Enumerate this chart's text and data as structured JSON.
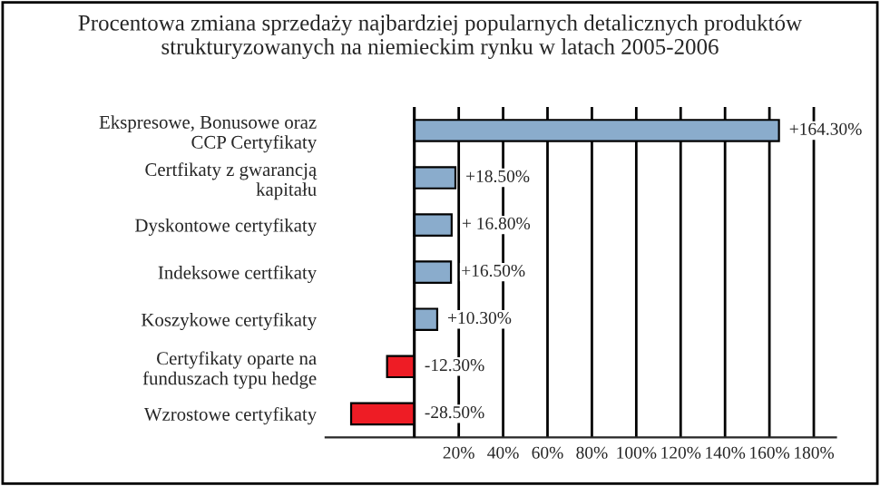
{
  "chart_data": {
    "type": "bar",
    "orientation": "horizontal",
    "title": "Procentowa zmiana sprzedaży najbardziej popularnych detalicznych produktów strukturyzowanych na niemieckim rynku w latach 2005-2006",
    "categories": [
      "Ekspresowe, Bonusowe oraz CCP Certyfikaty",
      "Certfikaty z gwarancją kapitału",
      "Dyskontowe certyfikaty",
      "Indeksowe certfikaty",
      "Koszykowe certyfikaty",
      "Certyfikaty oparte na funduszach typu hedge",
      "Wzrostowe certyfikaty"
    ],
    "values": [
      164.3,
      18.5,
      16.8,
      16.5,
      10.3,
      -12.3,
      -28.5
    ],
    "colors": [
      "#8aaccc",
      "#8aaccc",
      "#8aaccc",
      "#8aaccc",
      "#8aaccc",
      "#ee1c25",
      "#ee1c25"
    ],
    "value_labels": [
      "+164.30%",
      "+18.50%",
      "+ 16.80%",
      "+16.50%",
      "+10.30%",
      "-12.30%",
      "-28.50%"
    ],
    "xlim": [
      -40,
      190
    ],
    "xticks": [
      {
        "value": 0,
        "label": null
      },
      {
        "value": 20,
        "label": "20%"
      },
      {
        "value": 40,
        "label": "40%"
      },
      {
        "value": 60,
        "label": "60%"
      },
      {
        "value": 80,
        "label": "80%"
      },
      {
        "value": 100,
        "label": "100%"
      },
      {
        "value": 120,
        "label": "120%"
      },
      {
        "value": 140,
        "label": "140%"
      },
      {
        "value": 160,
        "label": "160%"
      },
      {
        "value": 180,
        "label": "180%"
      }
    ],
    "grid": "x"
  }
}
